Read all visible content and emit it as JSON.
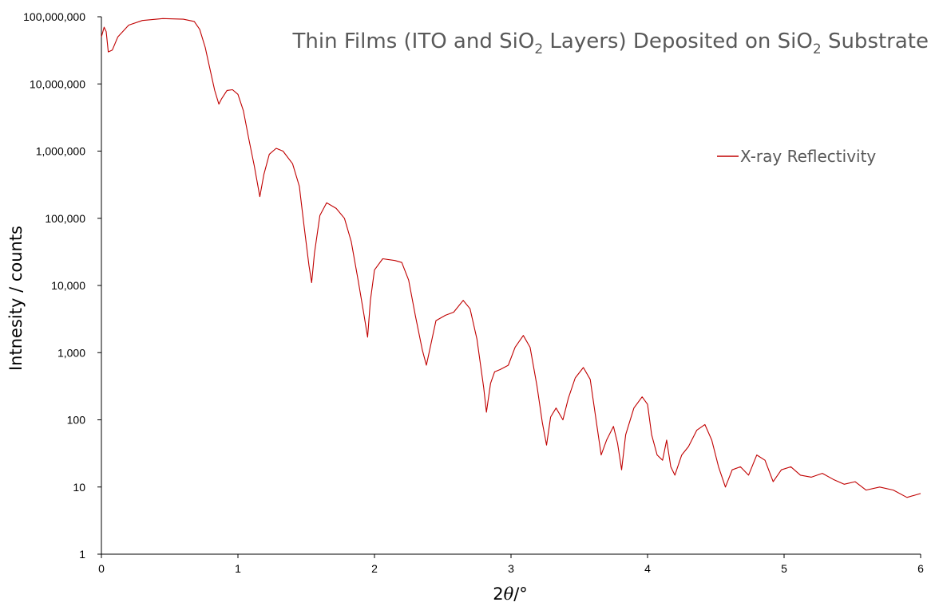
{
  "chart_data": {
    "type": "line",
    "title": {
      "part1": "Thin Films (ITO and SiO",
      "sub1": "2",
      "part2": " Layers) Deposited on SiO",
      "sub2": "2",
      "part3": " Substrate"
    },
    "xlabel": {
      "prefix": "2",
      "symbol": "θ",
      "suffix": "/°"
    },
    "ylabel": "Intnesity / counts",
    "xlim": [
      0,
      6
    ],
    "ylim": [
      1,
      100000000
    ],
    "y_scale": "log",
    "x_ticks": [
      "0",
      "1",
      "2",
      "3",
      "4",
      "5",
      "6"
    ],
    "y_ticks": [
      "1",
      "10",
      "100",
      "1,000",
      "10,000",
      "100,000",
      "1,000,000",
      "10,000,000",
      "100,000,000"
    ],
    "grid": false,
    "legend_position": "top-right",
    "series": [
      {
        "name": "X-ray Reflectivity",
        "color": "#c00000",
        "points": [
          [
            0.0,
            50000000
          ],
          [
            0.02,
            70000000
          ],
          [
            0.035,
            60000000
          ],
          [
            0.05,
            30000000
          ],
          [
            0.08,
            32000000
          ],
          [
            0.12,
            50000000
          ],
          [
            0.2,
            75000000
          ],
          [
            0.3,
            88000000
          ],
          [
            0.45,
            94000000
          ],
          [
            0.6,
            92000000
          ],
          [
            0.68,
            85000000
          ],
          [
            0.72,
            65000000
          ],
          [
            0.76,
            35000000
          ],
          [
            0.8,
            15000000
          ],
          [
            0.83,
            8000000
          ],
          [
            0.86,
            5000000
          ],
          [
            0.88,
            6000000
          ],
          [
            0.92,
            8000000
          ],
          [
            0.96,
            8200000
          ],
          [
            1.0,
            7000000
          ],
          [
            1.04,
            4000000
          ],
          [
            1.08,
            1500000
          ],
          [
            1.12,
            600000
          ],
          [
            1.16,
            210000
          ],
          [
            1.19,
            450000
          ],
          [
            1.23,
            900000
          ],
          [
            1.28,
            1100000
          ],
          [
            1.33,
            1000000
          ],
          [
            1.4,
            650000
          ],
          [
            1.45,
            300000
          ],
          [
            1.48,
            90000
          ],
          [
            1.52,
            20000
          ],
          [
            1.54,
            11000
          ],
          [
            1.56,
            30000
          ],
          [
            1.6,
            110000
          ],
          [
            1.65,
            170000
          ],
          [
            1.72,
            140000
          ],
          [
            1.78,
            100000
          ],
          [
            1.83,
            45000
          ],
          [
            1.88,
            12000
          ],
          [
            1.92,
            4000
          ],
          [
            1.95,
            1700
          ],
          [
            1.97,
            6000
          ],
          [
            2.0,
            17000
          ],
          [
            2.06,
            25000
          ],
          [
            2.15,
            23500
          ],
          [
            2.2,
            22000
          ],
          [
            2.25,
            12000
          ],
          [
            2.3,
            3500
          ],
          [
            2.35,
            1100
          ],
          [
            2.38,
            650
          ],
          [
            2.4,
            1000
          ],
          [
            2.45,
            3000
          ],
          [
            2.52,
            3600
          ],
          [
            2.58,
            4000
          ],
          [
            2.65,
            6000
          ],
          [
            2.7,
            4500
          ],
          [
            2.75,
            1600
          ],
          [
            2.8,
            300
          ],
          [
            2.82,
            130
          ],
          [
            2.85,
            350
          ],
          [
            2.88,
            520
          ],
          [
            2.92,
            560
          ],
          [
            2.98,
            650
          ],
          [
            3.03,
            1200
          ],
          [
            3.09,
            1800
          ],
          [
            3.14,
            1200
          ],
          [
            3.19,
            320
          ],
          [
            3.23,
            90
          ],
          [
            3.26,
            42
          ],
          [
            3.29,
            110
          ],
          [
            3.33,
            150
          ],
          [
            3.38,
            100
          ],
          [
            3.42,
            210
          ],
          [
            3.47,
            420
          ],
          [
            3.53,
            600
          ],
          [
            3.58,
            400
          ],
          [
            3.62,
            110
          ],
          [
            3.66,
            30
          ],
          [
            3.7,
            50
          ],
          [
            3.75,
            80
          ],
          [
            3.78,
            45
          ],
          [
            3.81,
            18
          ],
          [
            3.84,
            60
          ],
          [
            3.9,
            150
          ],
          [
            3.96,
            220
          ],
          [
            4.0,
            170
          ],
          [
            4.03,
            60
          ],
          [
            4.07,
            30
          ],
          [
            4.11,
            25
          ],
          [
            4.14,
            50
          ],
          [
            4.17,
            20
          ],
          [
            4.2,
            15
          ],
          [
            4.25,
            30
          ],
          [
            4.3,
            40
          ],
          [
            4.36,
            70
          ],
          [
            4.42,
            85
          ],
          [
            4.47,
            50
          ],
          [
            4.52,
            20
          ],
          [
            4.57,
            10
          ],
          [
            4.62,
            18
          ],
          [
            4.68,
            20
          ],
          [
            4.74,
            15
          ],
          [
            4.8,
            30
          ],
          [
            4.86,
            25
          ],
          [
            4.92,
            12
          ],
          [
            4.98,
            18
          ],
          [
            5.05,
            20
          ],
          [
            5.12,
            15
          ],
          [
            5.2,
            14
          ],
          [
            5.28,
            16
          ],
          [
            5.36,
            13
          ],
          [
            5.44,
            11
          ],
          [
            5.52,
            12
          ],
          [
            5.6,
            9
          ],
          [
            5.7,
            10
          ],
          [
            5.8,
            9
          ],
          [
            5.9,
            7
          ],
          [
            6.0,
            8
          ]
        ]
      }
    ]
  }
}
